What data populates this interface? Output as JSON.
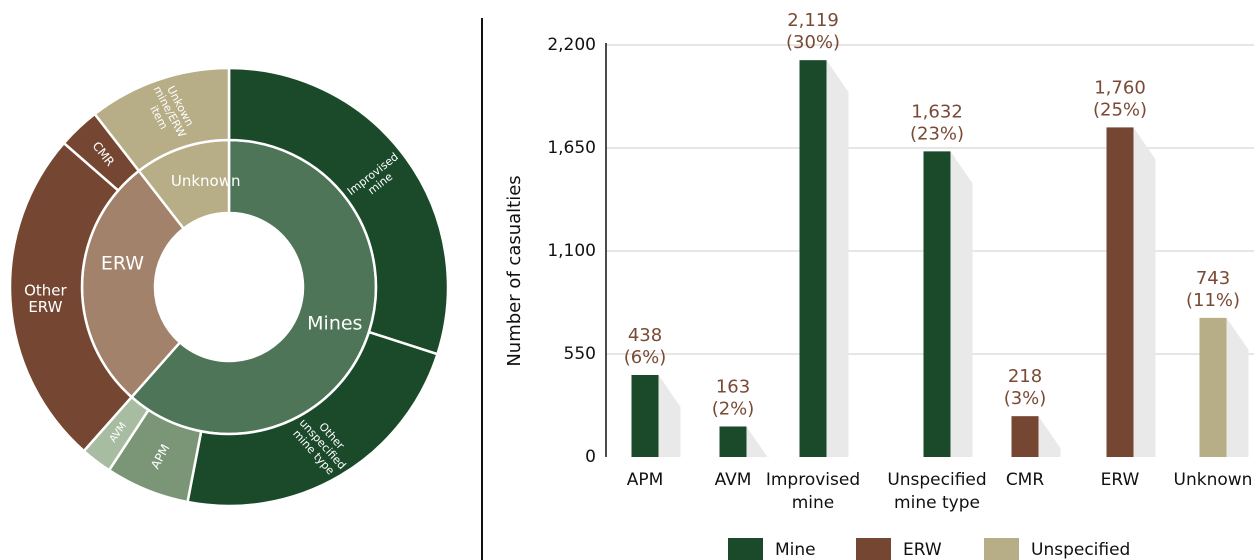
{
  "colors": {
    "mine_dark": "#1b4a2b",
    "mine_mid": "#4e7557",
    "mine_light": "#7a9677",
    "mine_lightest": "#a8bca2",
    "erw_dark": "#754631",
    "erw_light": "#a3826b",
    "unspecified": "#b7ad87",
    "label_brown": "#7a4a35",
    "axis_text": "#111111",
    "grid": "#cccccc"
  },
  "chart_data": [
    {
      "type": "pie",
      "variant": "sunburst",
      "inner_ring": [
        {
          "label": "Mines",
          "value": 4352,
          "group": "mine"
        },
        {
          "label": "ERW",
          "value": 1978,
          "group": "erw"
        },
        {
          "label": "Unknown",
          "value": 743,
          "group": "unspecified"
        }
      ],
      "outer_ring": [
        {
          "label": "Improvised mine",
          "value": 2119,
          "group": "mine"
        },
        {
          "label": "Other unspecified mine type",
          "value": 1632,
          "group": "mine"
        },
        {
          "label": "APM",
          "value": 438,
          "group": "mine"
        },
        {
          "label": "AVM",
          "value": 163,
          "group": "mine"
        },
        {
          "label": "Other ERW",
          "value": 1760,
          "group": "erw"
        },
        {
          "label": "CMR",
          "value": 218,
          "group": "erw"
        },
        {
          "label": "Unkown mine/ERW item",
          "value": 743,
          "group": "unspecified"
        }
      ]
    },
    {
      "type": "bar",
      "ylabel": "Number of casualties",
      "ylim": [
        0,
        2200
      ],
      "yticks": [
        0,
        550,
        1100,
        1650,
        2200
      ],
      "ytick_labels": [
        "0",
        "550",
        "1,100",
        "1,650",
        "2,200"
      ],
      "grid": true,
      "legend_position": "bottom",
      "legend": [
        {
          "label": "Mine",
          "group": "mine"
        },
        {
          "label": "ERW",
          "group": "erw"
        },
        {
          "label": "Unspecified",
          "group": "unspecified"
        }
      ],
      "bars": [
        {
          "category": [
            "APM"
          ],
          "value": 438,
          "value_label": "438",
          "pct_label": "(6%)",
          "group": "mine"
        },
        {
          "category": [
            "AVM"
          ],
          "value": 163,
          "value_label": "163",
          "pct_label": "(2%)",
          "group": "mine"
        },
        {
          "category": [
            "Improvised",
            "mine"
          ],
          "value": 2119,
          "value_label": "2,119",
          "pct_label": "(30%)",
          "group": "mine"
        },
        {
          "category": [
            "Unspecified",
            "mine type"
          ],
          "value": 1632,
          "value_label": "1,632",
          "pct_label": "(23%)",
          "group": "mine"
        },
        {
          "category": [
            "CMR"
          ],
          "value": 218,
          "value_label": "218",
          "pct_label": "(3%)",
          "group": "erw"
        },
        {
          "category": [
            "ERW"
          ],
          "value": 1760,
          "value_label": "1,760",
          "pct_label": "(25%)",
          "group": "erw"
        },
        {
          "category": [
            "Unknown"
          ],
          "value": 743,
          "value_label": "743",
          "pct_label": "(11%)",
          "group": "unspecified"
        }
      ]
    }
  ]
}
